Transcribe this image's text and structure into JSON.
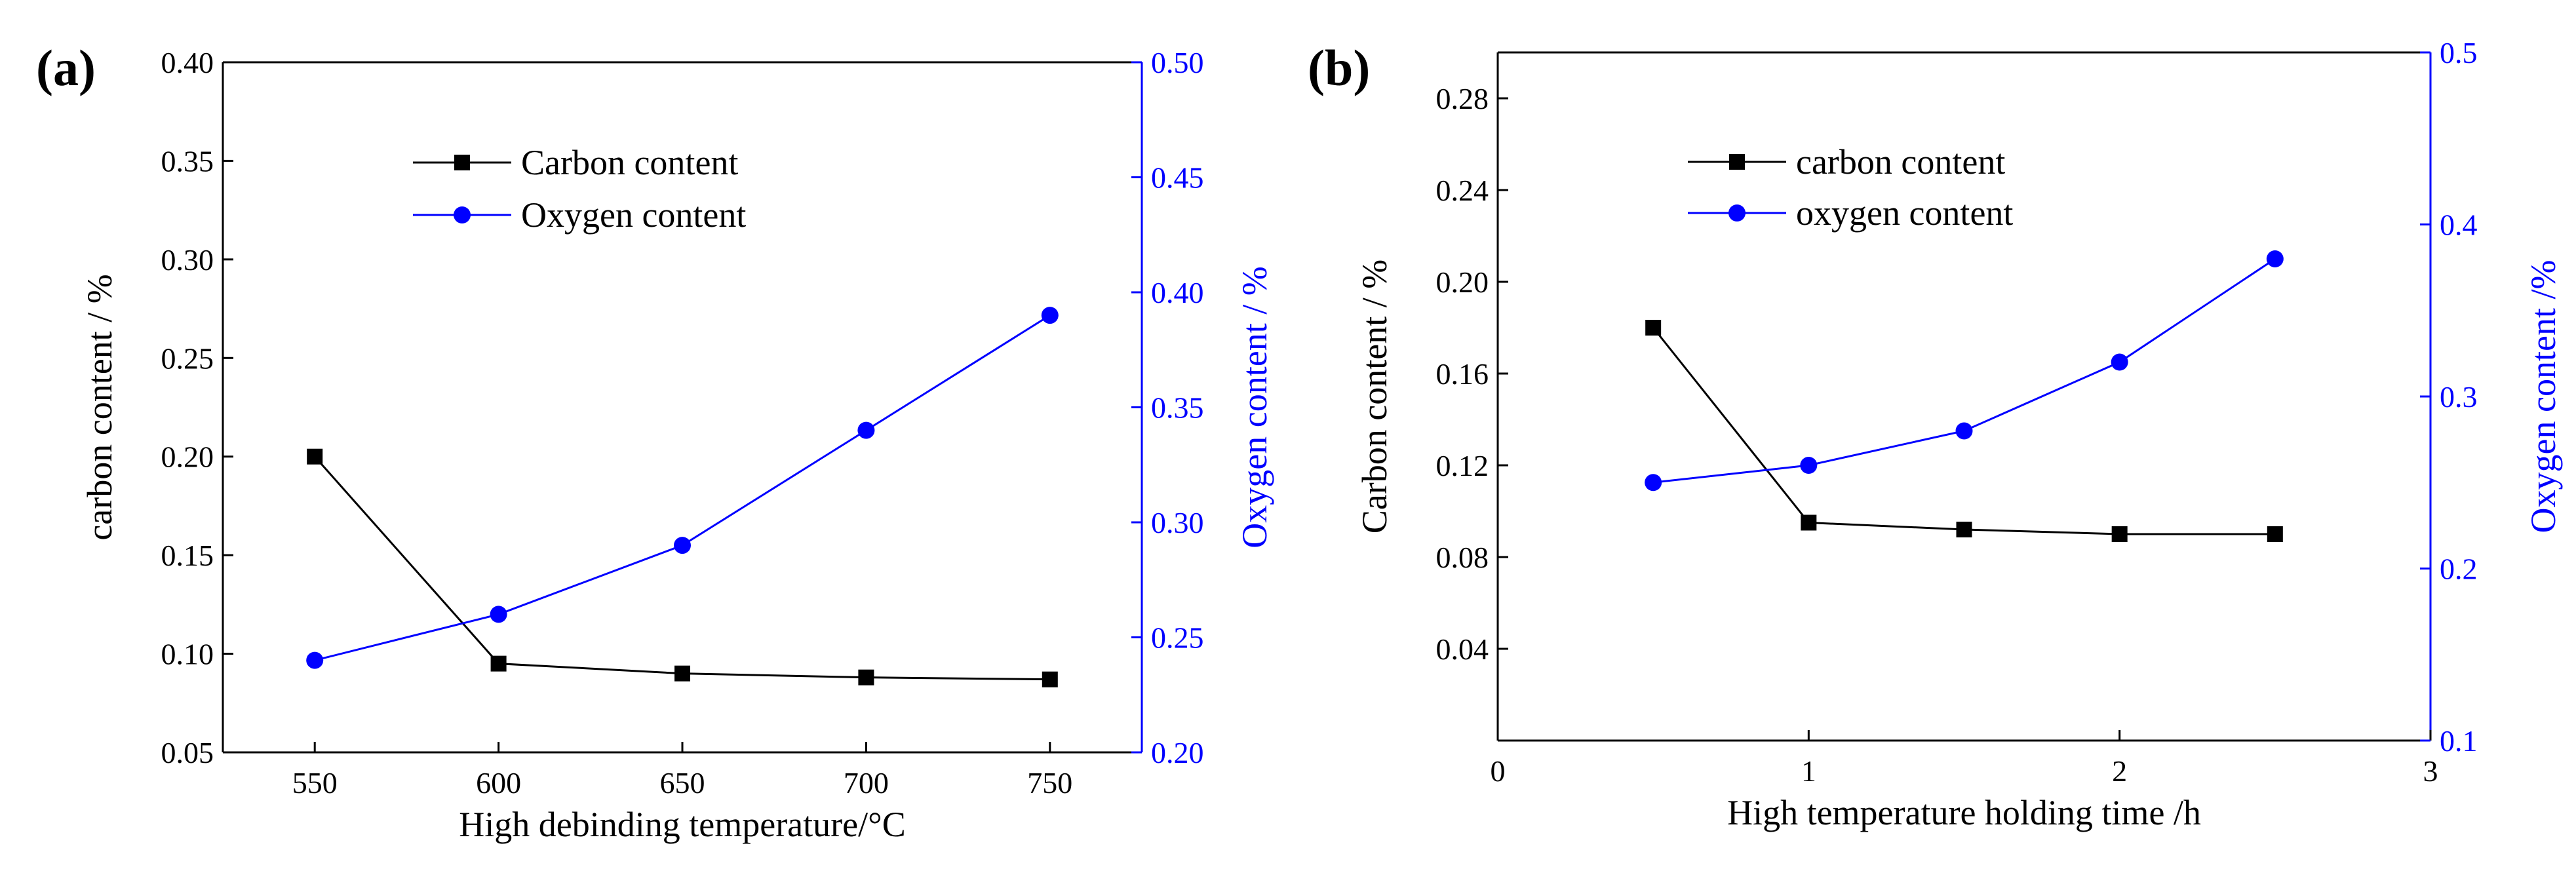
{
  "chart_data": [
    {
      "type": "line",
      "panel_label": "(a)",
      "xlabel": "High debinding temperature/°C",
      "ylabel_left": "carbon content / %",
      "ylabel_right": "Oxygen content / %",
      "xlim": [
        525,
        775
      ],
      "ylim_left": [
        0.05,
        0.4
      ],
      "ylim_right": [
        0.2,
        0.5
      ],
      "xticks": [
        550,
        600,
        650,
        700,
        750
      ],
      "xtick_labels": [
        "550",
        "600",
        "650",
        "700",
        "750"
      ],
      "yticks_left": [
        0.05,
        0.1,
        0.15,
        0.2,
        0.25,
        0.3,
        0.35,
        0.4
      ],
      "ytick_labels_left": [
        "0.05",
        "0.10",
        "0.15",
        "0.20",
        "0.25",
        "0.30",
        "0.35",
        "0.40"
      ],
      "yticks_right": [
        0.2,
        0.25,
        0.3,
        0.35,
        0.4,
        0.45,
        0.5
      ],
      "ytick_labels_right": [
        "0.20",
        "0.25",
        "0.30",
        "0.35",
        "0.40",
        "0.45",
        "0.50"
      ],
      "legend_position": "top-center",
      "series": [
        {
          "name": "Carbon content",
          "axis": "left",
          "marker": "square",
          "color": "#000000",
          "x": [
            550,
            600,
            650,
            700,
            750
          ],
          "values": [
            0.2,
            0.095,
            0.09,
            0.088,
            0.087
          ]
        },
        {
          "name": "Oxygen content",
          "axis": "right",
          "marker": "circle",
          "color": "#0000ff",
          "x": [
            550,
            600,
            650,
            700,
            750
          ],
          "values": [
            0.24,
            0.26,
            0.29,
            0.34,
            0.39
          ]
        }
      ]
    },
    {
      "type": "line",
      "panel_label": "(b)",
      "xlabel": "High temperature holding time /h",
      "ylabel_left": "Carbon content / %",
      "ylabel_right": "Oxygen content /%",
      "xlim": [
        0,
        3
      ],
      "ylim_left": [
        0.0,
        0.3
      ],
      "ylim_right": [
        0.1,
        0.5
      ],
      "xticks": [
        0,
        1,
        2,
        3
      ],
      "xtick_labels": [
        "0",
        "1",
        "2",
        "3"
      ],
      "yticks_left": [
        0.04,
        0.08,
        0.12,
        0.16,
        0.2,
        0.24,
        0.28
      ],
      "ytick_labels_left": [
        "0.04",
        "0.08",
        "0.12",
        "0.16",
        "0.20",
        "0.24",
        "0.28"
      ],
      "yticks_right": [
        0.1,
        0.2,
        0.3,
        0.4,
        0.5
      ],
      "ytick_labels_right": [
        "0.1",
        "0.2",
        "0.3",
        "0.4",
        "0.5"
      ],
      "legend_position": "top-center",
      "series": [
        {
          "name": "carbon content",
          "axis": "left",
          "marker": "square",
          "color": "#000000",
          "x": [
            0.5,
            1.0,
            1.5,
            2.0,
            2.5
          ],
          "values": [
            0.18,
            0.095,
            0.092,
            0.09,
            0.09
          ]
        },
        {
          "name": "oxygen content",
          "axis": "right",
          "marker": "circle",
          "color": "#0000ff",
          "x": [
            0.5,
            1.0,
            1.5,
            2.0,
            2.5
          ],
          "values": [
            0.25,
            0.26,
            0.28,
            0.32,
            0.38
          ]
        }
      ]
    }
  ]
}
